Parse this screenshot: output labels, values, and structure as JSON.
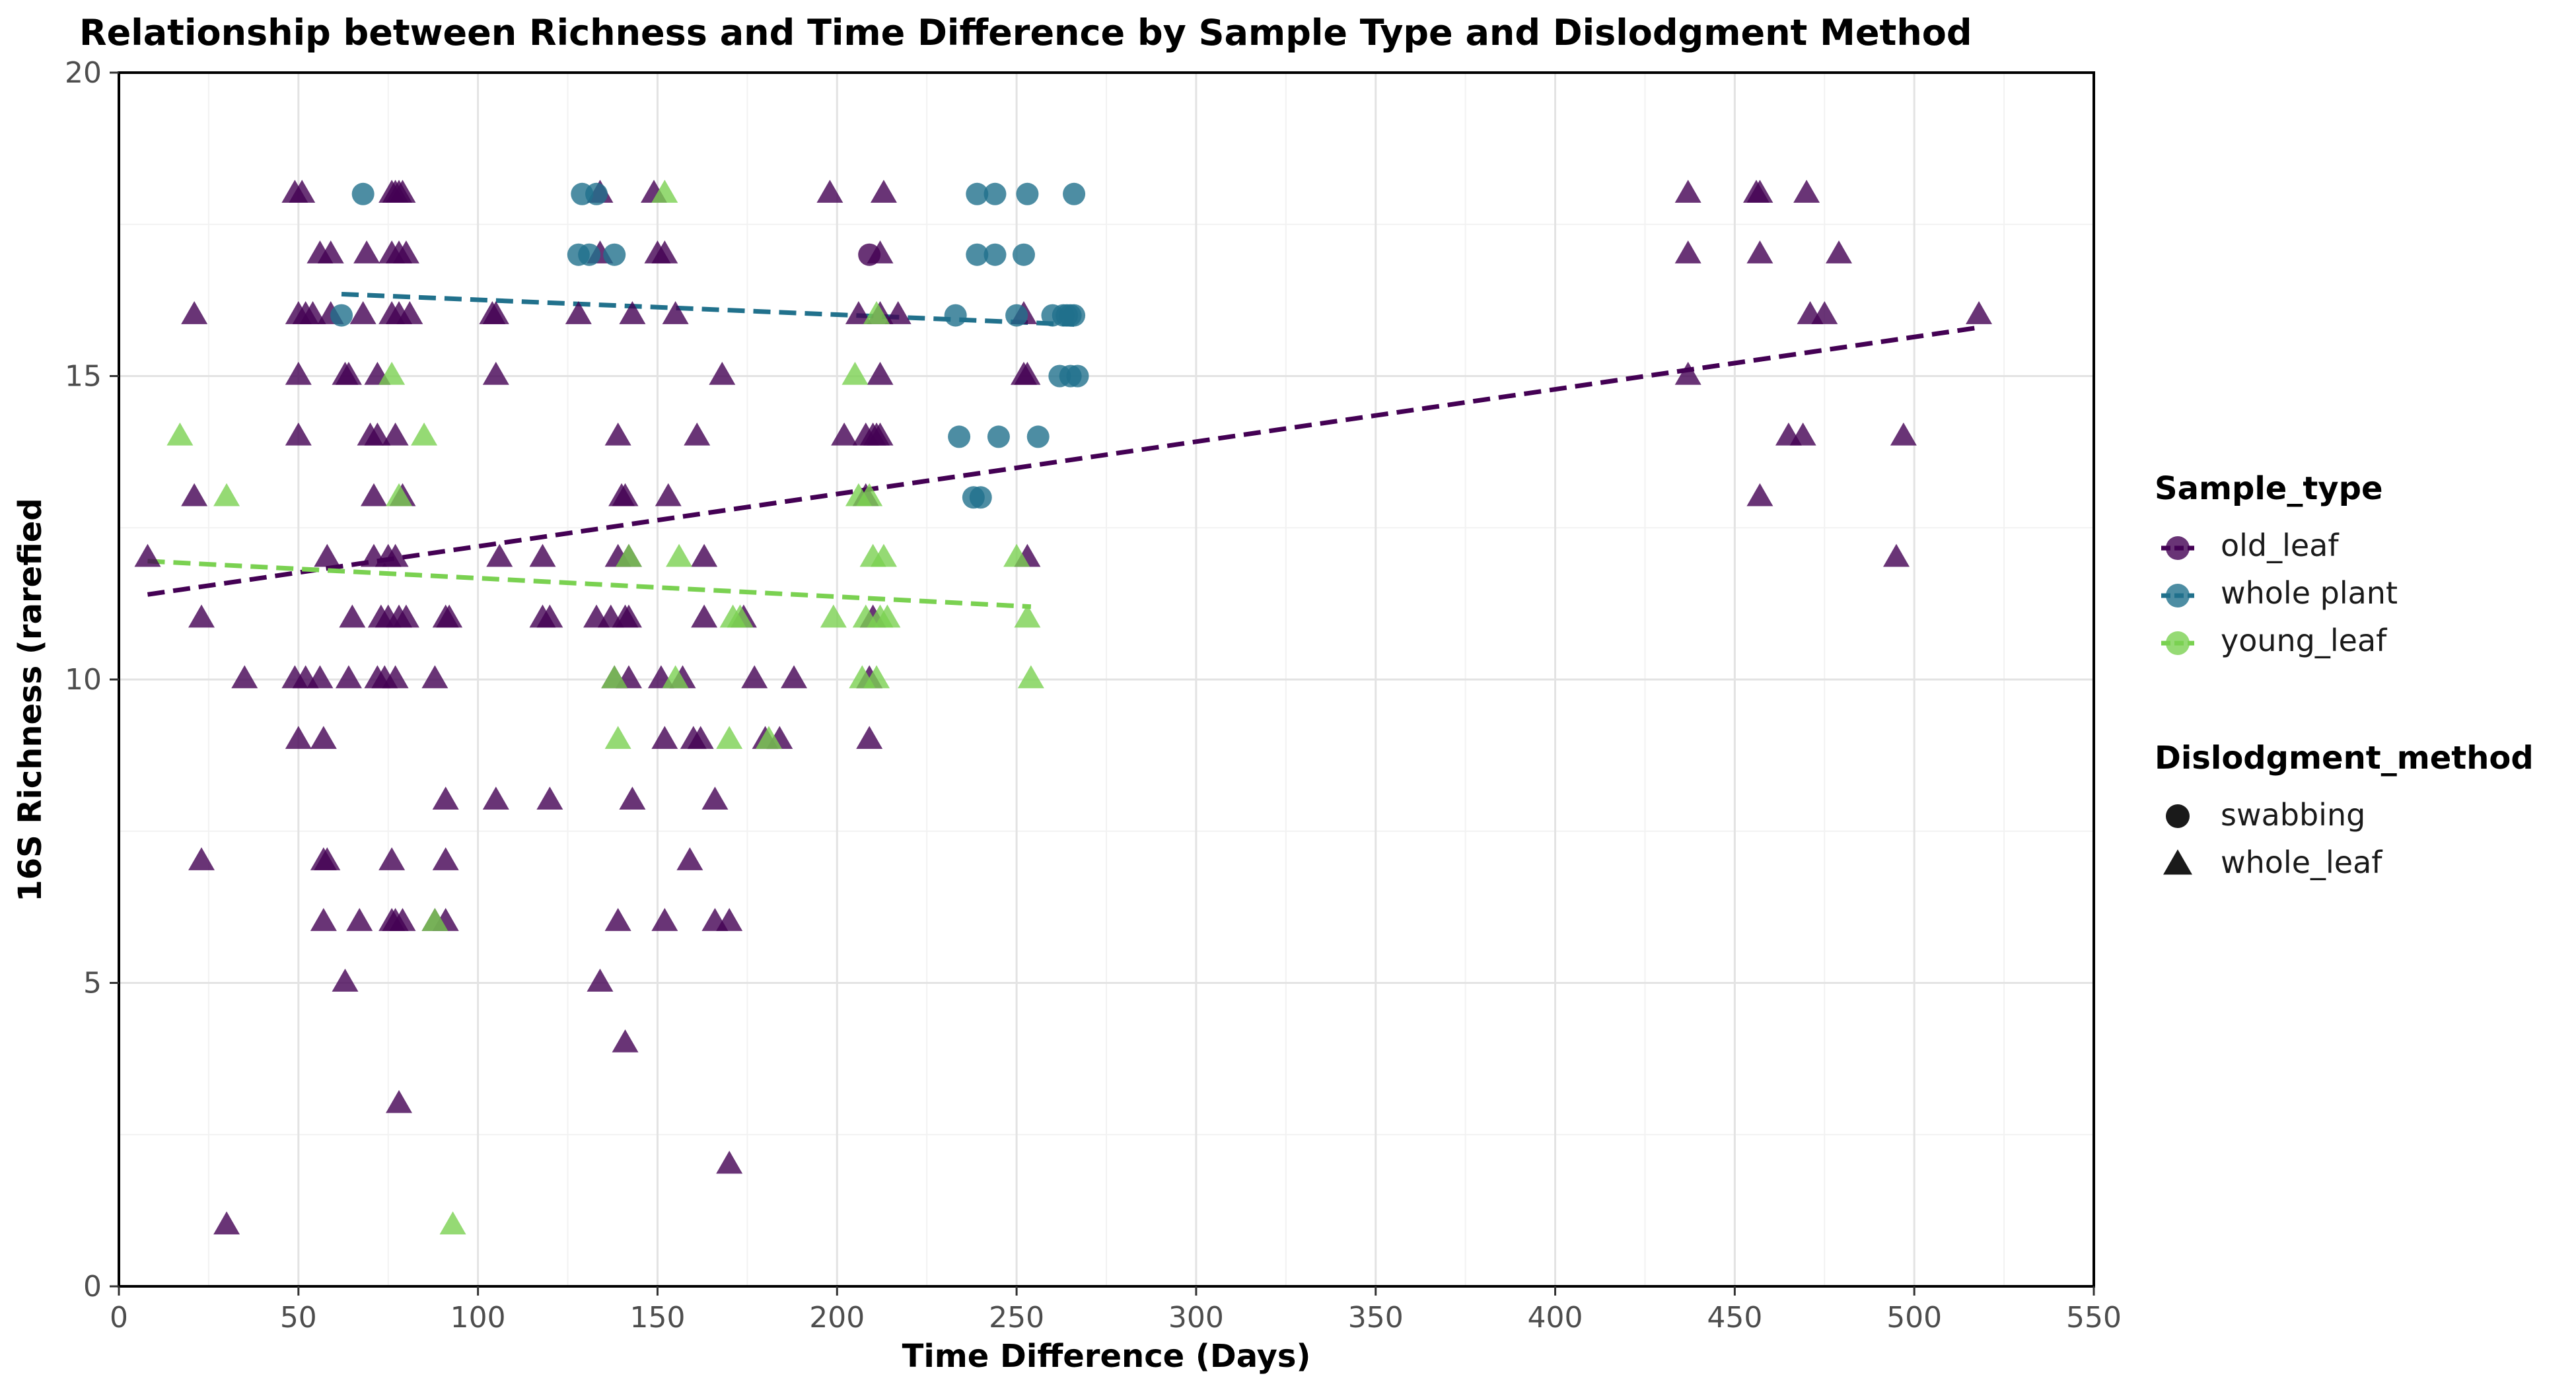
{
  "chart_data": {
    "type": "scatter",
    "title": "Relationship between Richness and Time Difference by Sample Type and Dislodgment Method",
    "xlabel": "Time Difference (Days)",
    "ylabel": "16S Richness (rarefied",
    "xlim": [
      0,
      550
    ],
    "ylim": [
      0,
      20
    ],
    "x_ticks": [
      0,
      50,
      100,
      150,
      200,
      250,
      300,
      350,
      400,
      450,
      500,
      550
    ],
    "y_ticks": [
      0,
      5,
      10,
      15,
      20
    ],
    "grid": true,
    "legend_placement": "right",
    "legend_color_title": "Sample_type",
    "legend_shape_title": "Dislodgment_method",
    "colors": {
      "old_leaf": "#440154",
      "whole plant": "#21718c",
      "young_leaf": "#7ad151"
    },
    "shapes": {
      "swabbing": "circle",
      "whole_leaf": "triangle"
    },
    "series": [
      {
        "name": "old_leaf",
        "method": "whole_leaf",
        "points": [
          [
            8,
            12
          ],
          [
            21,
            16
          ],
          [
            21,
            13
          ],
          [
            23,
            11
          ],
          [
            23,
            7
          ],
          [
            30,
            1
          ],
          [
            35,
            10
          ],
          [
            49,
            18
          ],
          [
            51,
            18
          ],
          [
            50,
            16
          ],
          [
            52,
            16
          ],
          [
            54,
            16
          ],
          [
            59,
            16
          ],
          [
            50,
            15
          ],
          [
            50,
            14
          ],
          [
            49,
            10
          ],
          [
            50,
            9
          ],
          [
            52,
            10
          ],
          [
            56,
            10
          ],
          [
            56,
            17
          ],
          [
            59,
            17
          ],
          [
            58,
            12
          ],
          [
            57,
            9
          ],
          [
            57,
            7
          ],
          [
            58,
            7
          ],
          [
            57,
            6
          ],
          [
            63,
            15
          ],
          [
            64,
            15
          ],
          [
            63,
            5
          ],
          [
            64,
            10
          ],
          [
            65,
            11
          ],
          [
            67,
            6
          ],
          [
            68,
            16
          ],
          [
            69,
            17
          ],
          [
            70,
            14
          ],
          [
            72,
            14
          ],
          [
            71,
            12
          ],
          [
            71,
            13
          ],
          [
            72,
            15
          ],
          [
            72,
            10
          ],
          [
            73,
            11
          ],
          [
            74,
            10
          ],
          [
            75,
            12
          ],
          [
            75,
            11
          ],
          [
            76,
            16
          ],
          [
            76,
            17
          ],
          [
            76,
            18
          ],
          [
            77,
            18
          ],
          [
            78,
            18
          ],
          [
            79,
            18
          ],
          [
            77,
            14
          ],
          [
            77,
            12
          ],
          [
            77,
            10
          ],
          [
            76,
            7
          ],
          [
            76,
            6
          ],
          [
            77,
            6
          ],
          [
            79,
            6
          ],
          [
            78,
            17
          ],
          [
            80,
            17
          ],
          [
            78,
            16
          ],
          [
            81,
            16
          ],
          [
            78,
            11
          ],
          [
            79,
            13
          ],
          [
            80,
            11
          ],
          [
            78,
            3
          ],
          [
            88,
            10
          ],
          [
            88,
            6
          ],
          [
            91,
            11
          ],
          [
            92,
            11
          ],
          [
            91,
            7
          ],
          [
            91,
            6
          ],
          [
            91,
            8
          ],
          [
            104,
            16
          ],
          [
            105,
            16
          ],
          [
            105,
            15
          ],
          [
            106,
            12
          ],
          [
            105,
            8
          ],
          [
            118,
            12
          ],
          [
            118,
            11
          ],
          [
            120,
            11
          ],
          [
            120,
            8
          ],
          [
            128,
            16
          ],
          [
            133,
            11
          ],
          [
            134,
            5
          ],
          [
            134,
            17
          ],
          [
            134,
            18
          ],
          [
            137,
            11
          ],
          [
            138,
            10
          ],
          [
            139,
            14
          ],
          [
            139,
            12
          ],
          [
            139,
            6
          ],
          [
            140,
            13
          ],
          [
            141,
            13
          ],
          [
            141,
            11
          ],
          [
            142,
            11
          ],
          [
            142,
            12
          ],
          [
            141,
            4
          ],
          [
            142,
            10
          ],
          [
            143,
            16
          ],
          [
            143,
            8
          ],
          [
            149,
            18
          ],
          [
            150,
            17
          ],
          [
            152,
            17
          ],
          [
            151,
            10
          ],
          [
            152,
            9
          ],
          [
            152,
            6
          ],
          [
            153,
            13
          ],
          [
            155,
            16
          ],
          [
            157,
            10
          ],
          [
            159,
            7
          ],
          [
            160,
            9
          ],
          [
            162,
            9
          ],
          [
            163,
            12
          ],
          [
            163,
            11
          ],
          [
            161,
            14
          ],
          [
            166,
            6
          ],
          [
            166,
            8
          ],
          [
            168,
            15
          ],
          [
            170,
            6
          ],
          [
            170,
            2
          ],
          [
            174,
            11
          ],
          [
            177,
            10
          ],
          [
            180,
            9
          ],
          [
            184,
            9
          ],
          [
            188,
            10
          ],
          [
            198,
            18
          ],
          [
            202,
            14
          ],
          [
            206,
            16
          ],
          [
            208,
            14
          ],
          [
            208,
            13
          ],
          [
            209,
            10
          ],
          [
            209,
            9
          ],
          [
            210,
            14
          ],
          [
            211,
            14
          ],
          [
            212,
            14
          ],
          [
            212,
            15
          ],
          [
            212,
            16
          ],
          [
            212,
            17
          ],
          [
            213,
            18
          ],
          [
            217,
            16
          ],
          [
            210,
            11
          ],
          [
            252,
            15
          ],
          [
            252,
            16
          ],
          [
            253,
            15
          ],
          [
            253,
            12
          ],
          [
            437,
            18
          ],
          [
            437,
            17
          ],
          [
            437,
            15
          ],
          [
            456,
            18
          ],
          [
            457,
            18
          ],
          [
            457,
            17
          ],
          [
            457,
            13
          ],
          [
            465,
            14
          ],
          [
            469,
            14
          ],
          [
            470,
            18
          ],
          [
            471,
            16
          ],
          [
            475,
            16
          ],
          [
            479,
            17
          ],
          [
            495,
            12
          ],
          [
            497,
            14
          ],
          [
            518,
            16
          ]
        ]
      },
      {
        "name": "old_leaf",
        "method": "swabbing",
        "points": [
          [
            209,
            17
          ]
        ]
      },
      {
        "name": "whole plant",
        "method": "swabbing",
        "points": [
          [
            62,
            16
          ],
          [
            68,
            18
          ],
          [
            128,
            17
          ],
          [
            129,
            18
          ],
          [
            131,
            17
          ],
          [
            133,
            18
          ],
          [
            138,
            17
          ],
          [
            233,
            16
          ],
          [
            234,
            14
          ],
          [
            238,
            13
          ],
          [
            239,
            18
          ],
          [
            239,
            17
          ],
          [
            240,
            13
          ],
          [
            244,
            17
          ],
          [
            244,
            18
          ],
          [
            245,
            14
          ],
          [
            250,
            16
          ],
          [
            252,
            17
          ],
          [
            253,
            18
          ],
          [
            256,
            14
          ],
          [
            260,
            16
          ],
          [
            262,
            15
          ],
          [
            263,
            16
          ],
          [
            264,
            16
          ],
          [
            265,
            15
          ],
          [
            265,
            16
          ],
          [
            266,
            16
          ],
          [
            266,
            18
          ],
          [
            267,
            15
          ]
        ]
      },
      {
        "name": "young_leaf",
        "method": "whole_leaf",
        "points": [
          [
            17,
            14
          ],
          [
            30,
            13
          ],
          [
            76,
            15
          ],
          [
            78,
            13
          ],
          [
            85,
            14
          ],
          [
            88,
            6
          ],
          [
            93,
            1
          ],
          [
            138,
            10
          ],
          [
            139,
            9
          ],
          [
            142,
            12
          ],
          [
            152,
            18
          ],
          [
            155,
            10
          ],
          [
            156,
            12
          ],
          [
            171,
            11
          ],
          [
            170,
            9
          ],
          [
            173,
            11
          ],
          [
            181,
            9
          ],
          [
            199,
            11
          ],
          [
            205,
            15
          ],
          [
            206,
            13
          ],
          [
            207,
            10
          ],
          [
            208,
            11
          ],
          [
            209,
            13
          ],
          [
            210,
            12
          ],
          [
            211,
            10
          ],
          [
            212,
            11
          ],
          [
            213,
            12
          ],
          [
            214,
            11
          ],
          [
            211,
            16
          ],
          [
            250,
            12
          ],
          [
            253,
            11
          ],
          [
            254,
            10
          ]
        ]
      }
    ],
    "trend_lines": [
      {
        "name": "old_leaf",
        "x": [
          8,
          518
        ],
        "y": [
          11.4,
          15.8
        ]
      },
      {
        "name": "whole plant",
        "x": [
          62,
          266
        ],
        "y": [
          16.35,
          15.85
        ]
      },
      {
        "name": "young_leaf",
        "x": [
          8,
          254
        ],
        "y": [
          11.95,
          11.2
        ]
      }
    ]
  },
  "legend": {
    "sample_type_title": "Sample_type",
    "sample_type_items": [
      "old_leaf",
      "whole plant",
      "young_leaf"
    ],
    "method_title": "Dislodgment_method",
    "method_items": [
      "swabbing",
      "whole_leaf"
    ]
  }
}
